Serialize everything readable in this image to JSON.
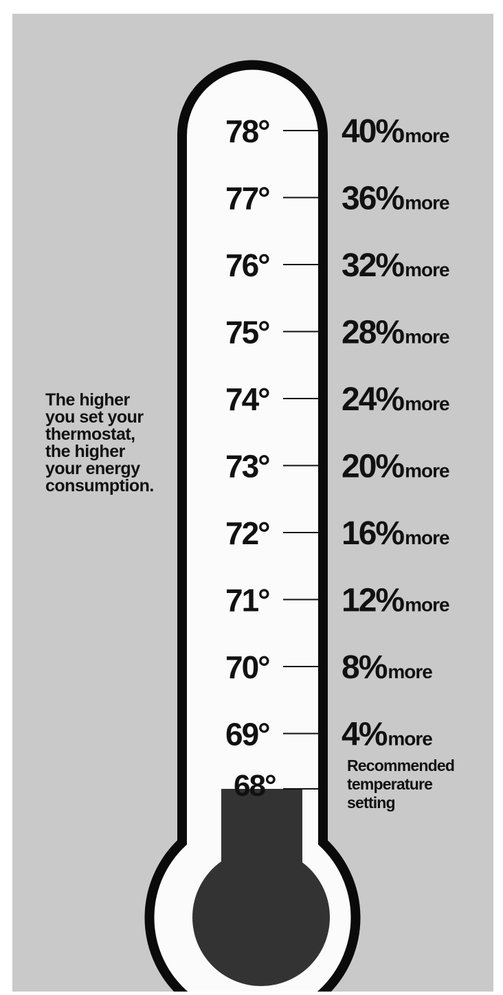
{
  "caption": [
    "The higher",
    "you set your",
    "thermostat,",
    "the higher",
    "your energy",
    "consumption."
  ],
  "scale": [
    {
      "temp": "78°",
      "pct": "40%",
      "more": "more"
    },
    {
      "temp": "77°",
      "pct": "36%",
      "more": "more"
    },
    {
      "temp": "76°",
      "pct": "32%",
      "more": "more"
    },
    {
      "temp": "75°",
      "pct": "28%",
      "more": "more"
    },
    {
      "temp": "74°",
      "pct": "24%",
      "more": "more"
    },
    {
      "temp": "73°",
      "pct": "20%",
      "more": "more"
    },
    {
      "temp": "72°",
      "pct": "16%",
      "more": "more"
    },
    {
      "temp": "71°",
      "pct": "12%",
      "more": "more"
    },
    {
      "temp": "70°",
      "pct": "8%",
      "more": "more"
    },
    {
      "temp": "69°",
      "pct": "4%",
      "more": "more"
    }
  ],
  "recommended": {
    "temp": "68°",
    "label": [
      "Recommended",
      "temperature",
      "setting"
    ]
  }
}
